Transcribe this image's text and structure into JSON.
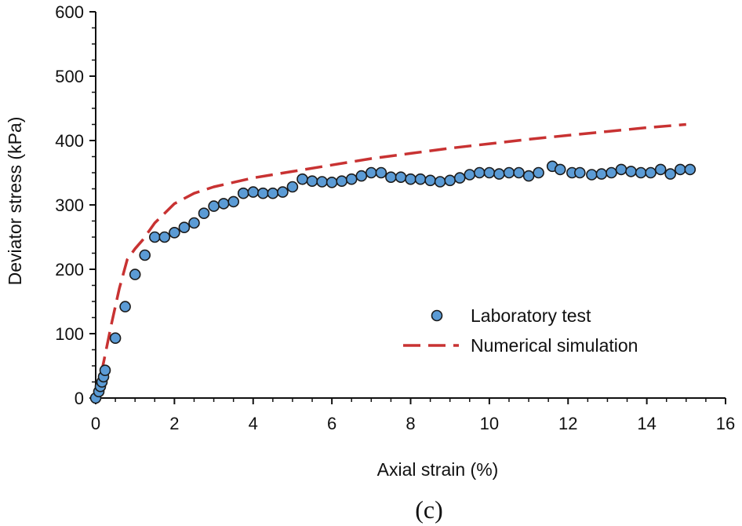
{
  "chart_data": {
    "type": "scatter",
    "title": "",
    "xlabel": "Axial strain (%)",
    "ylabel": "Deviator stress (kPa)",
    "xlim": [
      0,
      16
    ],
    "ylim": [
      0,
      600
    ],
    "xticks": [
      0,
      2,
      4,
      6,
      8,
      10,
      12,
      14,
      16
    ],
    "yticks": [
      0,
      100,
      200,
      300,
      400,
      500,
      600
    ],
    "grid": false,
    "legend_position": "lower-right",
    "caption": "(c)",
    "series": [
      {
        "name": "Laboratory test",
        "kind": "markers",
        "color": "#5b9bd5",
        "edge_color": "#1a1a1a",
        "x": [
          0.0,
          0.08,
          0.12,
          0.16,
          0.2,
          0.24,
          0.5,
          0.75,
          1.0,
          1.25,
          1.5,
          1.75,
          2.0,
          2.25,
          2.5,
          2.75,
          3.0,
          3.25,
          3.5,
          3.75,
          4.0,
          4.25,
          4.5,
          4.75,
          5.0,
          5.25,
          5.5,
          5.75,
          6.0,
          6.25,
          6.5,
          6.75,
          7.0,
          7.25,
          7.5,
          7.75,
          8.0,
          8.25,
          8.5,
          8.75,
          9.0,
          9.25,
          9.5,
          9.75,
          10.0,
          10.25,
          10.5,
          10.75,
          11.0,
          11.25,
          11.6,
          11.8,
          12.1,
          12.3,
          12.6,
          12.85,
          13.1,
          13.35,
          13.6,
          13.85,
          14.1,
          14.35,
          14.6,
          14.85,
          15.1
        ],
        "y": [
          0,
          10,
          18,
          25,
          33,
          43,
          93,
          142,
          192,
          222,
          250,
          250,
          257,
          265,
          272,
          287,
          298,
          302,
          305,
          318,
          320,
          318,
          318,
          320,
          328,
          340,
          337,
          336,
          335,
          337,
          340,
          345,
          350,
          350,
          343,
          343,
          340,
          340,
          338,
          336,
          338,
          342,
          347,
          350,
          350,
          348,
          350,
          350,
          345,
          350,
          360,
          355,
          350,
          350,
          347,
          348,
          350,
          355,
          352,
          350,
          350,
          355,
          348,
          355,
          355
        ]
      },
      {
        "name": "Numerical simulation",
        "kind": "dashed-line",
        "color": "#c83232",
        "x": [
          0.0,
          0.2,
          0.4,
          0.6,
          0.8,
          1.0,
          1.2,
          1.5,
          2.0,
          2.5,
          3.0,
          4.0,
          5.0,
          6.0,
          7.0,
          8.0,
          9.0,
          10.0,
          11.0,
          12.0,
          13.0,
          14.0,
          15.0
        ],
        "y": [
          0,
          55,
          115,
          170,
          215,
          232,
          246,
          272,
          302,
          318,
          328,
          342,
          352,
          362,
          372,
          380,
          388,
          395,
          402,
          408,
          414,
          420,
          425
        ]
      }
    ]
  }
}
